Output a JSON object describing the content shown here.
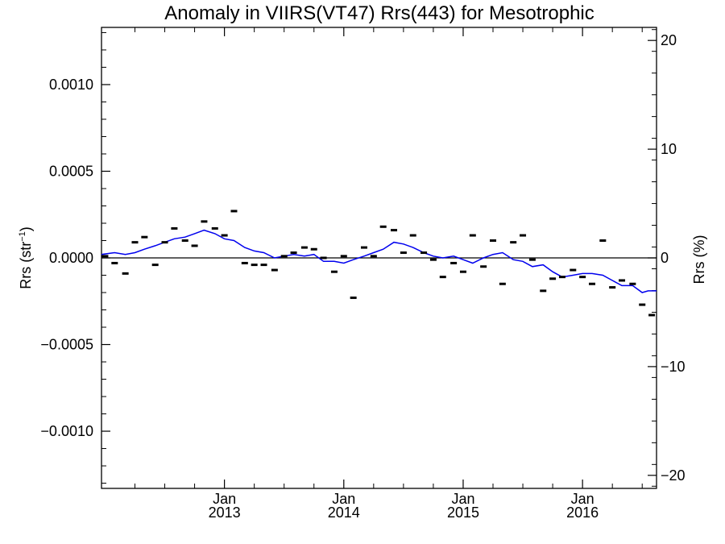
{
  "chart_data": {
    "type": "scatter",
    "title": "Anomaly in VIIRS(VT47) Rrs(443) for Mesotrophic",
    "ylabel_left_base": "Rrs (str",
    "ylabel_left_sup": "−1",
    "ylabel_left_close": ")",
    "ylabel_right": "Rrs (%)",
    "xlabel": "",
    "x_range": [
      2011.97,
      2016.62
    ],
    "y_left_range": [
      -0.00133,
      0.00133
    ],
    "y_right_range": [
      -21.2,
      21.2
    ],
    "left_ticks": [
      {
        "value": 0.001,
        "label": "0.0010"
      },
      {
        "value": 0.0005,
        "label": "0.0005"
      },
      {
        "value": 0.0,
        "label": "0.0000"
      },
      {
        "value": -0.0005,
        "label": "−0.0005"
      },
      {
        "value": -0.001,
        "label": "−0.0010"
      }
    ],
    "right_ticks": [
      {
        "value": 20,
        "label": "20"
      },
      {
        "value": 10,
        "label": "10"
      },
      {
        "value": 0,
        "label": "0"
      },
      {
        "value": -10,
        "label": "−10"
      },
      {
        "value": -20,
        "label": "−20"
      }
    ],
    "x_ticks": [
      {
        "value": 2013.0,
        "month": "Jan",
        "year": "2013"
      },
      {
        "value": 2014.0,
        "month": "Jan",
        "year": "2014"
      },
      {
        "value": 2015.0,
        "month": "Jan",
        "year": "2015"
      },
      {
        "value": 2016.0,
        "month": "Jan",
        "year": "2016"
      }
    ],
    "zero_line": 0,
    "series": [
      {
        "style": "markers",
        "color": "#000000",
        "x": [
          2012.0,
          2012.08,
          2012.17,
          2012.25,
          2012.33,
          2012.42,
          2012.5,
          2012.58,
          2012.67,
          2012.75,
          2012.83,
          2012.92,
          2013.0,
          2013.08,
          2013.17,
          2013.25,
          2013.33,
          2013.42,
          2013.5,
          2013.58,
          2013.67,
          2013.75,
          2013.83,
          2013.92,
          2014.0,
          2014.08,
          2014.17,
          2014.25,
          2014.33,
          2014.42,
          2014.5,
          2014.58,
          2014.67,
          2014.75,
          2014.83,
          2014.92,
          2015.0,
          2015.08,
          2015.17,
          2015.25,
          2015.33,
          2015.42,
          2015.5,
          2015.58,
          2015.67,
          2015.75,
          2015.83,
          2015.92,
          2016.0,
          2016.08,
          2016.17,
          2016.25,
          2016.33,
          2016.42,
          2016.5,
          2016.58
        ],
        "values": [
          1e-05,
          -3e-05,
          -9e-05,
          9e-05,
          0.00012,
          -4e-05,
          9e-05,
          0.00017,
          0.0001,
          7e-05,
          0.00021,
          0.00017,
          0.00013,
          0.00027,
          -3e-05,
          -4e-05,
          -4e-05,
          -7e-05,
          1e-05,
          3e-05,
          6e-05,
          5e-05,
          0.0,
          -8e-05,
          1e-05,
          -0.00023,
          6e-05,
          1e-05,
          0.00018,
          0.00016,
          3e-05,
          0.00013,
          3e-05,
          -1e-05,
          -0.00011,
          -3e-05,
          -8e-05,
          0.00013,
          -5e-05,
          0.0001,
          -0.00015,
          9e-05,
          0.00013,
          -1e-05,
          -0.00019,
          -0.00012,
          -0.00011,
          -7e-05,
          -0.00011,
          -0.00015,
          0.0001,
          -0.00017,
          -0.00013,
          -0.00015,
          -0.00027,
          -0.00033
        ]
      },
      {
        "style": "line",
        "color": "#0000ee",
        "x": [
          2011.97,
          2012.08,
          2012.17,
          2012.25,
          2012.33,
          2012.42,
          2012.5,
          2012.58,
          2012.67,
          2012.75,
          2012.83,
          2012.92,
          2013.0,
          2013.08,
          2013.17,
          2013.25,
          2013.33,
          2013.42,
          2013.5,
          2013.58,
          2013.67,
          2013.75,
          2013.83,
          2013.92,
          2014.0,
          2014.08,
          2014.17,
          2014.25,
          2014.33,
          2014.42,
          2014.5,
          2014.58,
          2014.67,
          2014.75,
          2014.83,
          2014.92,
          2015.0,
          2015.08,
          2015.17,
          2015.25,
          2015.33,
          2015.42,
          2015.5,
          2015.58,
          2015.67,
          2015.75,
          2015.83,
          2015.92,
          2016.0,
          2016.08,
          2016.17,
          2016.25,
          2016.33,
          2016.42,
          2016.5,
          2016.55,
          2016.62
        ],
        "values": [
          2e-05,
          3e-05,
          2e-05,
          3e-05,
          5e-05,
          7e-05,
          9e-05,
          0.00011,
          0.00012,
          0.00014,
          0.00016,
          0.00014,
          0.00011,
          0.0001,
          6e-05,
          4e-05,
          3e-05,
          0.0,
          1e-05,
          2e-05,
          1e-05,
          2e-05,
          -2e-05,
          -2e-05,
          -3e-05,
          -1e-05,
          1e-05,
          3e-05,
          5e-05,
          9e-05,
          8e-05,
          6e-05,
          3e-05,
          1e-05,
          0.0,
          1e-05,
          -1e-05,
          -3e-05,
          0.0,
          2e-05,
          3e-05,
          -1e-05,
          -2e-05,
          -5e-05,
          -4e-05,
          -8e-05,
          -0.00011,
          -0.0001,
          -9e-05,
          -9e-05,
          -0.0001,
          -0.00013,
          -0.00016,
          -0.00016,
          -0.0002,
          -0.00019,
          -0.00019
        ]
      }
    ]
  }
}
